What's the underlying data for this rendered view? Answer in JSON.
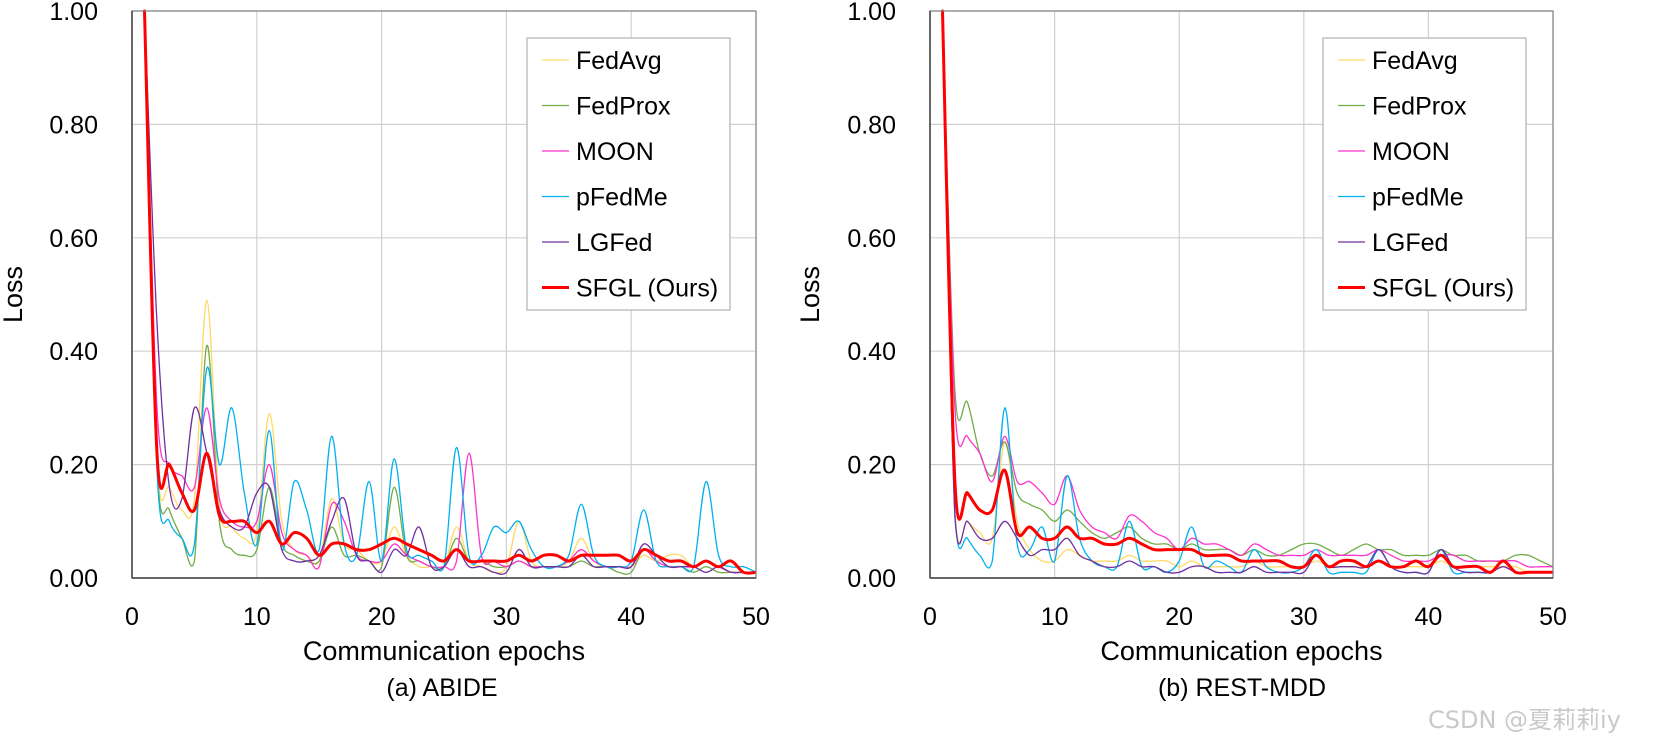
{
  "watermark": "CSDN @夏莉莉iy",
  "chart_data": [
    {
      "type": "line",
      "caption": "(a) ABIDE",
      "xlabel": "Communication epochs",
      "ylabel": "Loss",
      "xlim": [
        0,
        50
      ],
      "ylim": [
        0,
        1.0
      ],
      "xticks": [
        "0",
        "10",
        "20",
        "30",
        "40",
        "50"
      ],
      "yticks": [
        "0.00",
        "0.20",
        "0.40",
        "0.60",
        "0.80",
        "1.00"
      ],
      "grid": true,
      "legend_position": "top-right",
      "x": [
        1,
        2,
        3,
        4,
        5,
        6,
        7,
        8,
        9,
        10,
        11,
        12,
        13,
        14,
        15,
        16,
        17,
        18,
        19,
        20,
        21,
        22,
        23,
        24,
        25,
        26,
        27,
        28,
        29,
        30,
        31,
        32,
        33,
        34,
        35,
        36,
        37,
        38,
        39,
        40,
        41,
        42,
        43,
        44,
        45,
        46,
        47,
        48,
        49,
        50
      ],
      "series": [
        {
          "name": "FedAvg",
          "color": "#ffd966",
          "width": 1.3,
          "values": [
            1.0,
            0.21,
            0.16,
            0.12,
            0.14,
            0.49,
            0.13,
            0.09,
            0.07,
            0.08,
            0.29,
            0.1,
            0.05,
            0.04,
            0.03,
            0.14,
            0.06,
            0.05,
            0.03,
            0.03,
            0.09,
            0.04,
            0.02,
            0.02,
            0.02,
            0.09,
            0.03,
            0.02,
            0.01,
            0.02,
            0.1,
            0.03,
            0.02,
            0.02,
            0.03,
            0.07,
            0.03,
            0.02,
            0.02,
            0.02,
            0.04,
            0.03,
            0.04,
            0.04,
            0.02,
            0.03,
            0.02,
            0.01,
            0.01,
            0.01
          ]
        },
        {
          "name": "FedProx",
          "color": "#70ad47",
          "width": 1.3,
          "values": [
            1.0,
            0.2,
            0.12,
            0.07,
            0.03,
            0.41,
            0.1,
            0.05,
            0.04,
            0.05,
            0.16,
            0.06,
            0.04,
            0.03,
            0.03,
            0.09,
            0.04,
            0.04,
            0.03,
            0.02,
            0.16,
            0.04,
            0.03,
            0.02,
            0.02,
            0.07,
            0.03,
            0.03,
            0.02,
            0.02,
            0.03,
            0.02,
            0.02,
            0.02,
            0.02,
            0.03,
            0.02,
            0.02,
            0.01,
            0.01,
            0.05,
            0.03,
            0.02,
            0.02,
            0.01,
            0.02,
            0.01,
            0.01,
            0.01,
            0.01
          ]
        },
        {
          "name": "MOON",
          "color": "#ff33cc",
          "width": 1.3,
          "values": [
            1.0,
            0.3,
            0.2,
            0.18,
            0.16,
            0.3,
            0.14,
            0.1,
            0.09,
            0.1,
            0.2,
            0.08,
            0.05,
            0.04,
            0.02,
            0.13,
            0.1,
            0.04,
            0.03,
            0.03,
            0.06,
            0.04,
            0.03,
            0.02,
            0.02,
            0.03,
            0.22,
            0.04,
            0.03,
            0.02,
            0.03,
            0.02,
            0.02,
            0.02,
            0.03,
            0.05,
            0.03,
            0.02,
            0.02,
            0.02,
            0.05,
            0.03,
            0.02,
            0.02,
            0.02,
            0.03,
            0.02,
            0.01,
            0.01,
            0.01
          ]
        },
        {
          "name": "pFedMe",
          "color": "#00b0f0",
          "width": 1.3,
          "values": [
            1.0,
            0.19,
            0.1,
            0.07,
            0.06,
            0.37,
            0.2,
            0.3,
            0.15,
            0.06,
            0.26,
            0.05,
            0.17,
            0.12,
            0.05,
            0.25,
            0.06,
            0.04,
            0.17,
            0.03,
            0.21,
            0.05,
            0.04,
            0.03,
            0.02,
            0.23,
            0.04,
            0.04,
            0.09,
            0.08,
            0.1,
            0.05,
            0.02,
            0.02,
            0.04,
            0.13,
            0.04,
            0.02,
            0.02,
            0.03,
            0.12,
            0.03,
            0.02,
            0.02,
            0.02,
            0.17,
            0.04,
            0.02,
            0.02,
            0.01
          ]
        },
        {
          "name": "LGFed",
          "color": "#7030a0",
          "width": 1.3,
          "values": [
            1.0,
            0.45,
            0.16,
            0.14,
            0.3,
            0.22,
            0.12,
            0.09,
            0.09,
            0.15,
            0.16,
            0.05,
            0.03,
            0.03,
            0.04,
            0.1,
            0.14,
            0.04,
            0.03,
            0.01,
            0.05,
            0.04,
            0.09,
            0.02,
            0.02,
            0.05,
            0.02,
            0.02,
            0.01,
            0.01,
            0.05,
            0.02,
            0.02,
            0.02,
            0.02,
            0.04,
            0.02,
            0.02,
            0.02,
            0.02,
            0.06,
            0.04,
            0.02,
            0.02,
            0.02,
            0.01,
            0.02,
            0.01,
            0.01,
            0.01
          ]
        },
        {
          "name": "SFGL (Ours)",
          "color": "#ff0000",
          "width": 3,
          "values": [
            1.0,
            0.22,
            0.2,
            0.15,
            0.12,
            0.22,
            0.11,
            0.1,
            0.1,
            0.08,
            0.1,
            0.06,
            0.08,
            0.07,
            0.04,
            0.06,
            0.06,
            0.05,
            0.05,
            0.06,
            0.07,
            0.06,
            0.05,
            0.04,
            0.03,
            0.05,
            0.03,
            0.03,
            0.03,
            0.03,
            0.04,
            0.03,
            0.04,
            0.04,
            0.03,
            0.04,
            0.04,
            0.04,
            0.04,
            0.03,
            0.05,
            0.04,
            0.03,
            0.03,
            0.02,
            0.03,
            0.02,
            0.03,
            0.01,
            0.01
          ]
        }
      ]
    },
    {
      "type": "line",
      "caption": "(b) REST-MDD",
      "xlabel": "Communication epochs",
      "ylabel": "Loss",
      "xlim": [
        0,
        50
      ],
      "ylim": [
        0,
        1.0
      ],
      "xticks": [
        "0",
        "10",
        "20",
        "30",
        "40",
        "50"
      ],
      "yticks": [
        "0.00",
        "0.20",
        "0.40",
        "0.60",
        "0.80",
        "1.00"
      ],
      "grid": true,
      "legend_position": "top-right",
      "x": [
        1,
        2,
        3,
        4,
        5,
        6,
        7,
        8,
        9,
        10,
        11,
        12,
        13,
        14,
        15,
        16,
        17,
        18,
        19,
        20,
        21,
        22,
        23,
        24,
        25,
        26,
        27,
        28,
        29,
        30,
        31,
        32,
        33,
        34,
        35,
        36,
        37,
        38,
        39,
        40,
        41,
        42,
        43,
        44,
        45,
        46,
        47,
        48,
        49,
        50
      ],
      "series": [
        {
          "name": "FedAvg",
          "color": "#ffd966",
          "width": 1.3,
          "values": [
            1.0,
            0.12,
            0.1,
            0.08,
            0.07,
            0.24,
            0.1,
            0.05,
            0.03,
            0.03,
            0.05,
            0.04,
            0.03,
            0.03,
            0.03,
            0.04,
            0.03,
            0.03,
            0.03,
            0.02,
            0.03,
            0.02,
            0.02,
            0.02,
            0.02,
            0.03,
            0.02,
            0.02,
            0.02,
            0.02,
            0.03,
            0.02,
            0.02,
            0.02,
            0.02,
            0.03,
            0.02,
            0.02,
            0.02,
            0.02,
            0.03,
            0.02,
            0.02,
            0.02,
            0.02,
            0.02,
            0.02,
            0.01,
            0.01,
            0.01
          ]
        },
        {
          "name": "FedProx",
          "color": "#70ad47",
          "width": 1.3,
          "values": [
            1.0,
            0.33,
            0.31,
            0.22,
            0.18,
            0.24,
            0.15,
            0.13,
            0.12,
            0.1,
            0.12,
            0.1,
            0.08,
            0.07,
            0.08,
            0.09,
            0.07,
            0.06,
            0.06,
            0.05,
            0.06,
            0.05,
            0.05,
            0.05,
            0.04,
            0.05,
            0.04,
            0.04,
            0.05,
            0.06,
            0.06,
            0.05,
            0.04,
            0.05,
            0.06,
            0.05,
            0.05,
            0.04,
            0.04,
            0.04,
            0.05,
            0.04,
            0.04,
            0.03,
            0.03,
            0.03,
            0.04,
            0.04,
            0.03,
            0.02
          ]
        },
        {
          "name": "MOON",
          "color": "#ff33cc",
          "width": 1.3,
          "values": [
            1.0,
            0.3,
            0.25,
            0.22,
            0.17,
            0.25,
            0.17,
            0.17,
            0.15,
            0.13,
            0.18,
            0.12,
            0.09,
            0.08,
            0.07,
            0.11,
            0.1,
            0.08,
            0.07,
            0.05,
            0.07,
            0.06,
            0.06,
            0.05,
            0.04,
            0.06,
            0.05,
            0.04,
            0.04,
            0.04,
            0.05,
            0.04,
            0.04,
            0.04,
            0.04,
            0.05,
            0.04,
            0.03,
            0.03,
            0.03,
            0.04,
            0.04,
            0.03,
            0.03,
            0.03,
            0.03,
            0.03,
            0.02,
            0.02,
            0.02
          ]
        },
        {
          "name": "pFedMe",
          "color": "#00b0f0",
          "width": 1.3,
          "values": [
            1.0,
            0.11,
            0.07,
            0.04,
            0.03,
            0.3,
            0.06,
            0.05,
            0.09,
            0.03,
            0.18,
            0.07,
            0.03,
            0.02,
            0.02,
            0.1,
            0.02,
            0.02,
            0.01,
            0.03,
            0.09,
            0.02,
            0.03,
            0.02,
            0.01,
            0.05,
            0.02,
            0.01,
            0.01,
            0.02,
            0.05,
            0.01,
            0.01,
            0.01,
            0.01,
            0.05,
            0.02,
            0.01,
            0.01,
            0.01,
            0.05,
            0.01,
            0.01,
            0.01,
            0.01,
            0.03,
            0.01,
            0.01,
            0.01,
            0.01
          ]
        },
        {
          "name": "LGFed",
          "color": "#7030a0",
          "width": 1.3,
          "values": [
            1.0,
            0.11,
            0.1,
            0.07,
            0.07,
            0.1,
            0.07,
            0.04,
            0.05,
            0.05,
            0.07,
            0.04,
            0.03,
            0.02,
            0.02,
            0.03,
            0.02,
            0.02,
            0.01,
            0.01,
            0.02,
            0.02,
            0.01,
            0.01,
            0.01,
            0.02,
            0.01,
            0.01,
            0.01,
            0.01,
            0.04,
            0.02,
            0.02,
            0.02,
            0.02,
            0.05,
            0.02,
            0.01,
            0.01,
            0.01,
            0.05,
            0.02,
            0.01,
            0.01,
            0.01,
            0.02,
            0.01,
            0.01,
            0.01,
            0.01
          ]
        },
        {
          "name": "SFGL (Ours)",
          "color": "#ff0000",
          "width": 3,
          "values": [
            1.0,
            0.17,
            0.15,
            0.12,
            0.12,
            0.19,
            0.08,
            0.09,
            0.07,
            0.07,
            0.09,
            0.07,
            0.07,
            0.06,
            0.06,
            0.07,
            0.06,
            0.05,
            0.05,
            0.05,
            0.05,
            0.04,
            0.04,
            0.04,
            0.03,
            0.03,
            0.03,
            0.03,
            0.02,
            0.02,
            0.04,
            0.02,
            0.03,
            0.03,
            0.02,
            0.03,
            0.02,
            0.02,
            0.03,
            0.02,
            0.04,
            0.02,
            0.02,
            0.02,
            0.01,
            0.03,
            0.01,
            0.01,
            0.01,
            0.01
          ]
        }
      ]
    }
  ]
}
